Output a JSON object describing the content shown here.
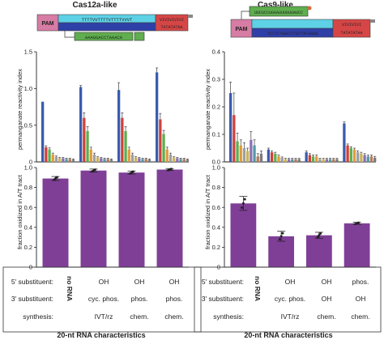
{
  "panels": {
    "left_title": "Cas12a-like",
    "right_title": "Cas9-like"
  },
  "diagram": {
    "pam_label": "PAM",
    "left_top_strand": "TTTTVVTTTTVTTTTVVVT",
    "left_bottom_strand": "AAAGGACCTAAACA",
    "left_red_seq": "VIVIVIVIVI",
    "left_red_bottom": "TATATATAA",
    "right_green_seq": "UUCUCCUGGAUUUGUUAUCC",
    "right_bottom_strand": "TCTTCTGGATTTGTTATAAGG",
    "right_red_seq": "VIVIVIVI",
    "right_red_bottom": "TATATATAA"
  },
  "axis_labels": {
    "reactivity": "permanganate reactivity index",
    "fraction": "fraction oxidized in A/T tract"
  },
  "rows": {
    "r5": "5' substituent:",
    "r3": "3' substituent:",
    "rs": "synthesis:",
    "footer": "20-nt RNA characteristics"
  },
  "colors": {
    "blue": "#3a5cae",
    "red": "#d0413a",
    "green": "#5fae4f",
    "orange": "#e39a3b",
    "purple": "#7f3f97",
    "cyan": "#5ed1e6",
    "pink": "#e0608a",
    "pam": "#d77ca4"
  },
  "chart_data": [
    {
      "type": "bar",
      "panel": "Cas12a-like reactivity",
      "ylabel": "permanganate reactivity index",
      "ylim": [
        0,
        1.5
      ],
      "yticks": [
        "0",
        "0.5",
        "1.0",
        "1.5"
      ],
      "groups": [
        {
          "values": [
            0.82,
            0.2,
            0.17,
            0.1,
            0.07,
            0.05,
            0.05,
            0.04,
            0.04,
            0.03
          ],
          "errors": [
            0,
            0.02,
            0.02,
            0.02,
            0.01,
            0.01,
            0.01,
            0.01,
            0.01,
            0.01
          ]
        },
        {
          "values": [
            1.02,
            0.6,
            0.42,
            0.17,
            0.1,
            0.06,
            0.05,
            0.04,
            0.04,
            0.03
          ],
          "errors": [
            0.02,
            0.07,
            0.06,
            0.03,
            0.02,
            0.01,
            0.01,
            0.01,
            0.01,
            0.01
          ]
        },
        {
          "values": [
            0.98,
            0.6,
            0.42,
            0.17,
            0.1,
            0.06,
            0.05,
            0.04,
            0.04,
            0.03
          ],
          "errors": [
            0.1,
            0.07,
            0.06,
            0.03,
            0.02,
            0.01,
            0.01,
            0.01,
            0.01,
            0.01
          ]
        },
        {
          "values": [
            1.22,
            0.58,
            0.38,
            0.17,
            0.1,
            0.06,
            0.05,
            0.04,
            0.04,
            0.03
          ],
          "errors": [
            0.06,
            0.08,
            0.05,
            0.03,
            0.02,
            0.01,
            0.01,
            0.01,
            0.01,
            0.01
          ]
        }
      ]
    },
    {
      "type": "bar",
      "panel": "Cas9-like reactivity",
      "ylabel": "permanganate reactivity index",
      "ylim": [
        0,
        0.4
      ],
      "yticks": [
        "0.0",
        "0.1",
        "0.2",
        "0.3",
        "0.4"
      ],
      "groups": [
        {
          "values": [
            0.25,
            0.17,
            0.075,
            0.06,
            0.05,
            0.04,
            0.08,
            0.06,
            0.02,
            0.03
          ],
          "errors": [
            0.04,
            0.08,
            0.03,
            0.02,
            0.02,
            0.01,
            0.03,
            0.02,
            0.01,
            0.01
          ]
        },
        {
          "values": [
            0.045,
            0.035,
            0.03,
            0.02,
            0.015,
            0.01,
            0.01,
            0.01,
            0.01,
            0.01
          ],
          "errors": [
            0.005,
            0.005,
            0.005,
            0.005,
            0.003,
            0.003,
            0.003,
            0.003,
            0.003,
            0.003
          ]
        },
        {
          "values": [
            0.035,
            0.025,
            0.02,
            0.02,
            0.01,
            0.01,
            0.01,
            0.01,
            0.01,
            0.01
          ],
          "errors": [
            0.005,
            0.005,
            0.005,
            0.005,
            0.003,
            0.003,
            0.003,
            0.003,
            0.003,
            0.003
          ]
        },
        {
          "values": [
            0.14,
            0.06,
            0.05,
            0.045,
            0.035,
            0.03,
            0.025,
            0.02,
            0.02,
            0.015
          ],
          "errors": [
            0.005,
            0.005,
            0.005,
            0.005,
            0.005,
            0.005,
            0.005,
            0.005,
            0.005,
            0.005
          ]
        }
      ]
    },
    {
      "type": "bar",
      "panel": "Cas12a-like fraction",
      "ylabel": "fraction oxidized in A/T tract",
      "ylim": [
        0,
        1.0
      ],
      "yticks": [
        "0",
        "0.2",
        "0.4",
        "0.6",
        "0.8",
        "1.0"
      ],
      "categories": [
        "no RNA",
        "OH / cyc. phos. / IVT/rz",
        "OH / phos. / chem.",
        "OH / phos. / chem."
      ],
      "values": [
        0.89,
        0.97,
        0.95,
        0.98
      ],
      "errors": [
        0.02,
        0.015,
        0.015,
        0.01
      ]
    },
    {
      "type": "bar",
      "panel": "Cas9-like fraction",
      "ylabel": "fraction oxidized in A/T tract",
      "ylim": [
        0,
        1.0
      ],
      "yticks": [
        "0",
        "0.2",
        "0.4",
        "0.6",
        "0.8",
        "1.0"
      ],
      "categories": [
        "no RNA",
        "OH / cyc. phos. / IVT/rz",
        "OH / OH / chem.",
        "phos. / OH / chem."
      ],
      "values": [
        0.64,
        0.31,
        0.32,
        0.44
      ],
      "errors": [
        0.07,
        0.05,
        0.03,
        0.01
      ]
    }
  ],
  "tables": {
    "left": {
      "norna": "no RNA",
      "cols": [
        {
          "s5": "OH",
          "s3": "cyc. phos.",
          "syn": "IVT/rz"
        },
        {
          "s5": "OH",
          "s3": "phos.",
          "syn": "chem."
        },
        {
          "s5": "OH",
          "s3": "phos.",
          "syn": "chem."
        }
      ]
    },
    "right": {
      "norna": "no RNA",
      "cols": [
        {
          "s5": "OH",
          "s3": "cyc. phos.",
          "syn": "IVT/rz"
        },
        {
          "s5": "OH",
          "s3": "OH",
          "syn": "chem."
        },
        {
          "s5": "phos.",
          "s3": "OH",
          "syn": "chem."
        }
      ]
    }
  }
}
